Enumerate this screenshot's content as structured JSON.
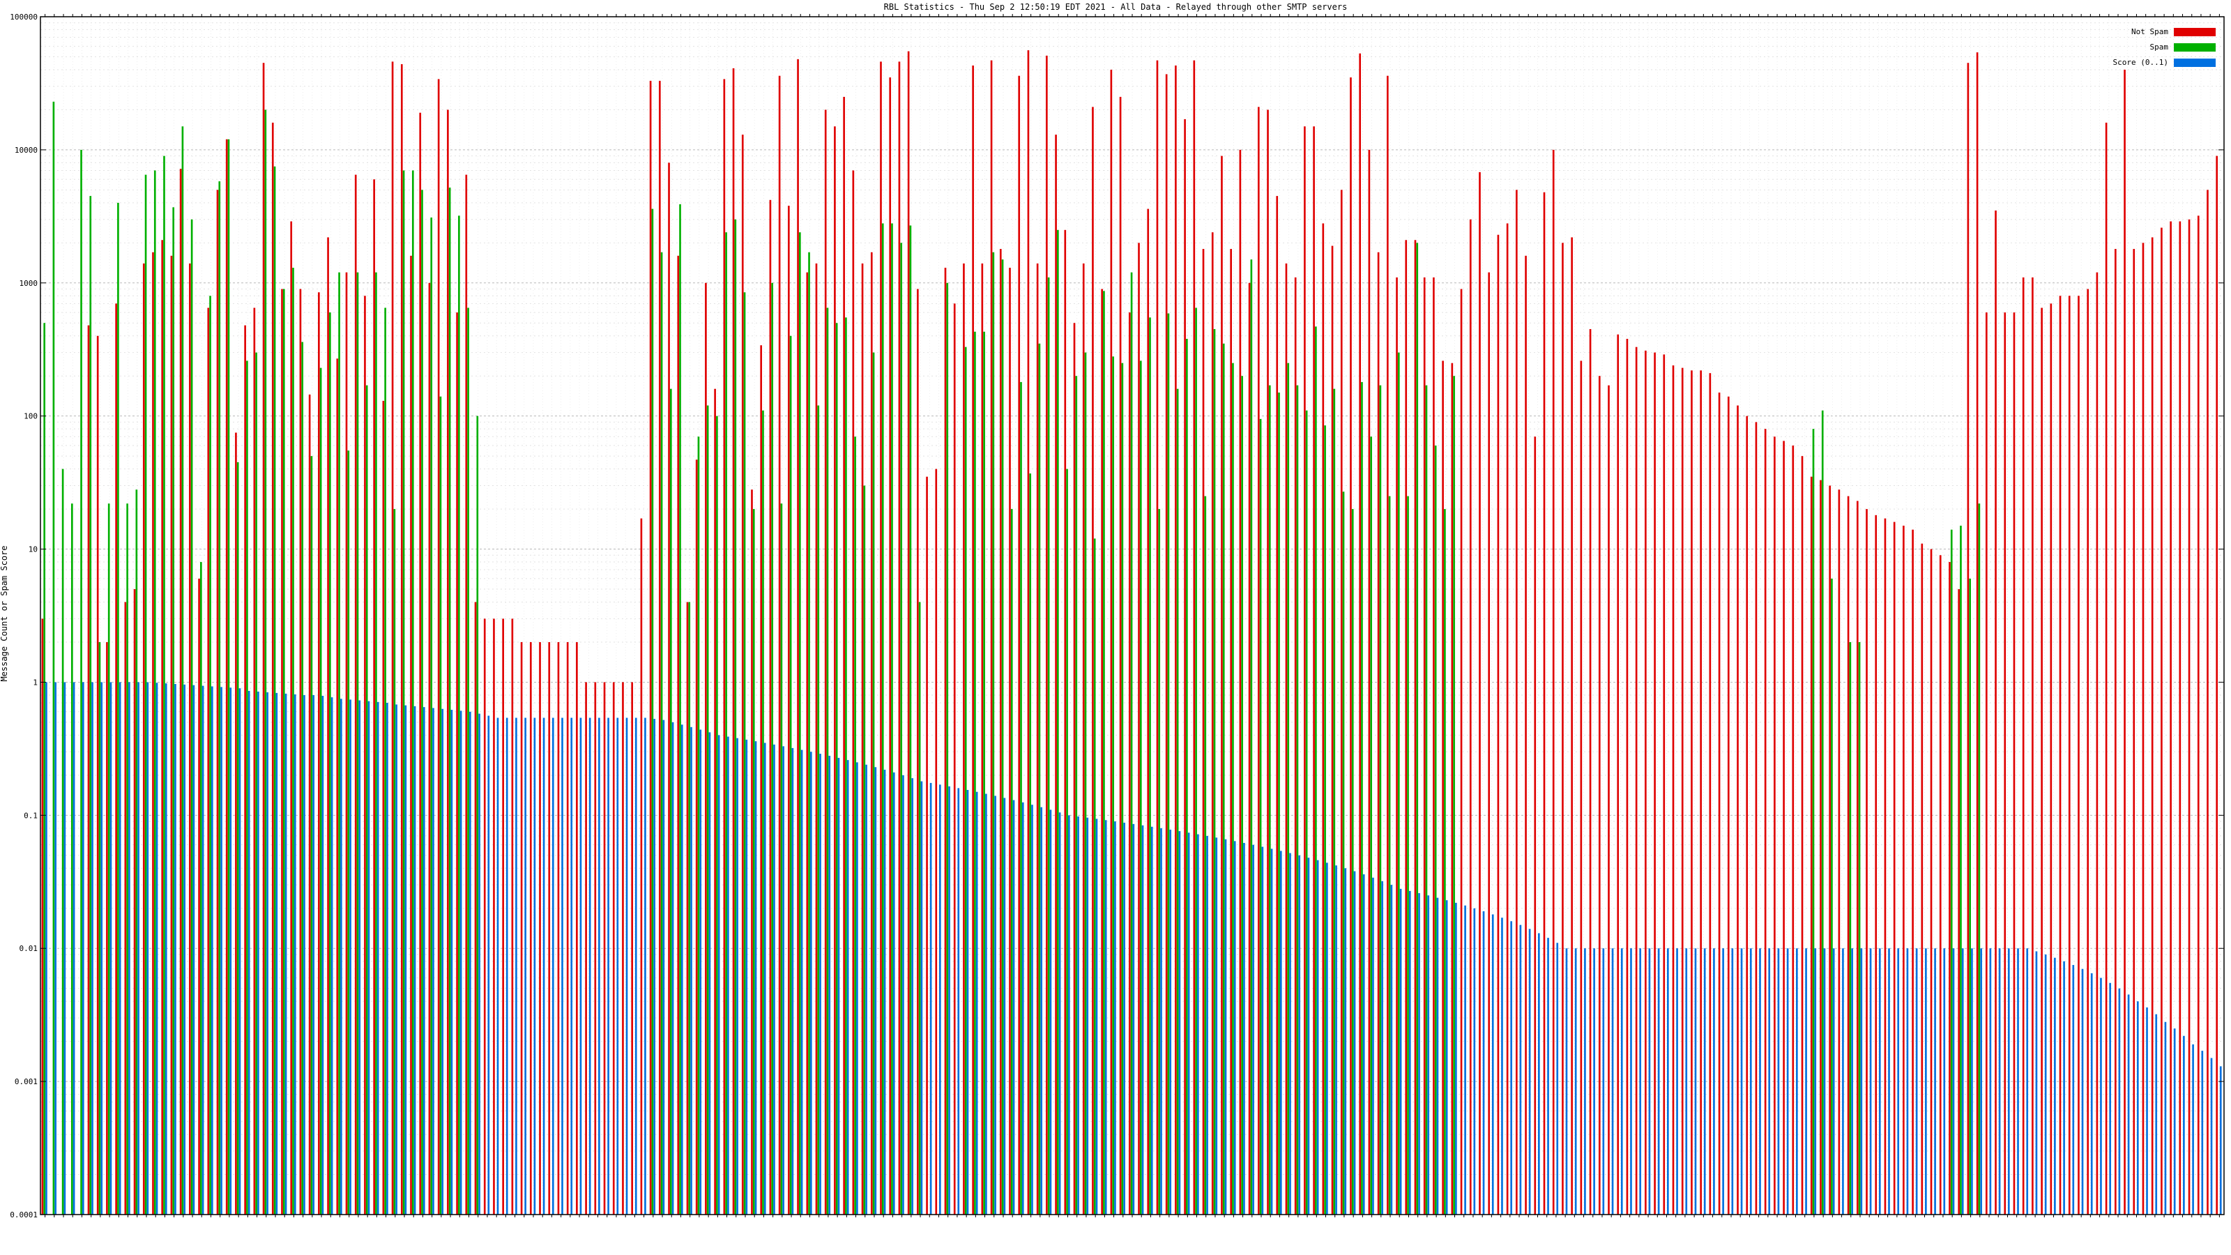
{
  "chart_data": {
    "type": "bar",
    "title": "RBL Statistics - Thu Sep  2 12:50:19 EDT 2021 - All Data - Relayed through other SMTP servers",
    "ylabel": "Message Count or Spam Score",
    "xlabel": "",
    "yscale": "log",
    "ylim": [
      0.0001,
      100000
    ],
    "y_ticks": [
      "0.0001",
      "0.001",
      "0.01",
      "0.1",
      "1",
      "10",
      "100",
      "1000",
      "10000",
      "100000"
    ],
    "grid": true,
    "legend_position": "top-right",
    "colors": {
      "not_spam": "#e00000",
      "spam": "#00b000",
      "score": "#0070e0"
    },
    "series": [
      {
        "name": "Not Spam",
        "color": "#e00000",
        "values": [
          3,
          0,
          0,
          0,
          0,
          480,
          400,
          2,
          700,
          4,
          5,
          1400,
          1700,
          2100,
          1600,
          7200,
          1400,
          6,
          650,
          5000,
          12000,
          75,
          480,
          650,
          45000,
          16000,
          900,
          2900,
          900,
          145,
          850,
          2200,
          270,
          1200,
          6500,
          800,
          6000,
          130,
          46000,
          44000,
          1600,
          19000,
          1000,
          34000,
          20000,
          600,
          6500,
          4,
          3,
          3,
          3,
          3,
          2,
          2,
          2,
          2,
          2,
          2,
          2,
          1,
          1,
          1,
          1,
          1,
          1,
          17,
          33000,
          33000,
          8000,
          1600,
          4,
          47,
          1000,
          160,
          34000,
          41000,
          13000,
          28,
          340,
          4200,
          36000,
          3800,
          48000,
          1200,
          1400,
          20000,
          15000,
          25000,
          7000,
          1400,
          1700,
          46000,
          35000,
          46000,
          55000,
          900,
          35,
          40,
          1300,
          700,
          1400,
          43000,
          1400,
          47000,
          1800,
          1300,
          36000,
          56000,
          1400,
          51000,
          13000,
          2500,
          500,
          1400,
          21000,
          900,
          40000,
          25000,
          600,
          2000,
          3600,
          47000,
          37000,
          43000,
          17000,
          47000,
          1800,
          2400,
          9000,
          1800,
          10000,
          1000,
          21000,
          20000,
          4500,
          1400,
          1100,
          15000,
          15000,
          2800,
          1900,
          5000,
          35000,
          53000,
          10000,
          1700,
          36000,
          1100,
          2100,
          2100,
          1100,
          1100,
          260,
          250,
          900,
          3000,
          6800,
          1200,
          2300,
          2800,
          5000,
          1600,
          70,
          4800,
          10000,
          2000,
          2200,
          260,
          450,
          200,
          170,
          410,
          380,
          330,
          310,
          300,
          290,
          240,
          230,
          220,
          220,
          210,
          150,
          140,
          120,
          100,
          90,
          80,
          70,
          65,
          60,
          50,
          35,
          33,
          30,
          28,
          25,
          23,
          20,
          18,
          17,
          16,
          15,
          14,
          11,
          10,
          9,
          8,
          5,
          45000,
          54000,
          600,
          3500,
          600,
          600,
          1100,
          1100,
          650,
          700,
          800,
          800,
          800,
          900,
          1200,
          16000,
          1800,
          40000,
          1800,
          2000,
          2200,
          2600,
          2900,
          2900,
          3000,
          3200,
          5000,
          9000
        ]
      },
      {
        "name": "Spam",
        "color": "#00b000",
        "values": [
          500,
          23000,
          40,
          22,
          10000,
          4500,
          2,
          22,
          4000,
          22,
          28,
          6500,
          7000,
          9000,
          3700,
          15000,
          3000,
          8,
          800,
          5800,
          12000,
          45,
          260,
          300,
          20000,
          7500,
          900,
          1300,
          360,
          50,
          230,
          600,
          1200,
          55,
          1200,
          170,
          1200,
          650,
          20,
          7000,
          7000,
          5000,
          3100,
          140,
          5200,
          3200,
          650,
          100,
          0,
          0,
          0,
          0,
          0,
          0,
          0,
          0,
          0,
          0,
          0,
          0,
          0,
          0,
          0,
          0,
          0,
          0,
          3600,
          1700,
          160,
          3900,
          4,
          70,
          120,
          100,
          2400,
          3000,
          850,
          20,
          110,
          1000,
          22,
          400,
          2400,
          1700,
          120,
          650,
          500,
          550,
          70,
          30,
          300,
          2800,
          2800,
          2000,
          2700,
          4,
          0,
          0,
          1000,
          0,
          330,
          430,
          430,
          1700,
          1500,
          20,
          180,
          37,
          350,
          1100,
          2500,
          40,
          200,
          300,
          12,
          870,
          280,
          250,
          1200,
          260,
          550,
          20,
          590,
          160,
          380,
          650,
          25,
          450,
          350,
          250,
          200,
          1500,
          95,
          170,
          150,
          250,
          170,
          110,
          470,
          85,
          160,
          27,
          20,
          180,
          70,
          170,
          25,
          300,
          25,
          2000,
          170,
          60,
          20,
          200,
          0,
          0,
          0,
          0,
          0,
          0,
          0,
          0,
          0,
          0,
          0,
          0,
          0,
          0,
          0,
          0,
          0,
          0,
          0,
          0,
          0,
          0,
          0,
          0,
          0,
          0,
          0,
          0,
          0,
          0,
          0,
          0,
          0,
          0,
          0,
          0,
          0,
          0,
          80,
          110,
          6,
          0,
          2,
          2,
          0,
          0,
          0,
          0,
          0,
          0,
          0,
          0,
          0,
          14,
          15,
          6,
          22,
          0,
          0,
          0,
          0,
          0,
          0,
          0,
          0,
          0
        ]
      },
      {
        "name": "Score (0..1)",
        "color": "#0070e0",
        "values": [
          1,
          1,
          1,
          1,
          1,
          1,
          1,
          1,
          1,
          1,
          1,
          1,
          1,
          1,
          1,
          1,
          1,
          1,
          1,
          1,
          1,
          1,
          1,
          1,
          1,
          1,
          1,
          1,
          1,
          1,
          1,
          1,
          1,
          1,
          1,
          1,
          1,
          1,
          1,
          1,
          1,
          1,
          1,
          1,
          1,
          1,
          1,
          1,
          1,
          1,
          1,
          1,
          1,
          1,
          1,
          1,
          1,
          1,
          1,
          1,
          1,
          1,
          1,
          1,
          1,
          1,
          1,
          1,
          1,
          1,
          1,
          1,
          1,
          1,
          1,
          1,
          1,
          1,
          1,
          1,
          1,
          1,
          1,
          1,
          1,
          1,
          1,
          1,
          1,
          1,
          1,
          1,
          1,
          1,
          1,
          1,
          1,
          1,
          1,
          1,
          1,
          1,
          1,
          1,
          1,
          1,
          1,
          1,
          1,
          1,
          1,
          1,
          1,
          1,
          1,
          1,
          1,
          1,
          1,
          1,
          1,
          1,
          1,
          1,
          1,
          1,
          1,
          1,
          1,
          1,
          1,
          1,
          1,
          1,
          1,
          1,
          1,
          1,
          1,
          1,
          1,
          1,
          1,
          1,
          1,
          1,
          1,
          1,
          1,
          1,
          1,
          1,
          1,
          1,
          1,
          1,
          1,
          1,
          1,
          1,
          1,
          1,
          1,
          1,
          1,
          1,
          1,
          1,
          1,
          1,
          1,
          1,
          1,
          1,
          1,
          1,
          1,
          1,
          1,
          1,
          1,
          1,
          1,
          1,
          1,
          1,
          1,
          1,
          1,
          1,
          1,
          1,
          1,
          1,
          1,
          1,
          1,
          1,
          1,
          1,
          1,
          1,
          1,
          1,
          1,
          1,
          1,
          1,
          1,
          1,
          1,
          1,
          1,
          1,
          1,
          1,
          1,
          1,
          1,
          1,
          1,
          1,
          1,
          1,
          1,
          1,
          1,
          1,
          1,
          1,
          1,
          1,
          1,
          1,
          1,
          1,
          1,
          1,
          1
        ]
      }
    ],
    "score_profile": [
      1,
      1,
      1,
      1,
      1,
      1,
      1,
      1,
      1,
      1,
      1,
      1,
      0.99,
      0.98,
      0.97,
      0.96,
      0.95,
      0.94,
      0.93,
      0.92,
      0.91,
      0.9,
      0.86,
      0.85,
      0.84,
      0.83,
      0.82,
      0.81,
      0.8,
      0.8,
      0.79,
      0.77,
      0.75,
      0.74,
      0.73,
      0.72,
      0.71,
      0.7,
      0.68,
      0.67,
      0.66,
      0.65,
      0.64,
      0.63,
      0.62,
      0.61,
      0.6,
      0.58,
      0.56,
      0.54,
      0.54,
      0.54,
      0.54,
      0.54,
      0.54,
      0.54,
      0.54,
      0.54,
      0.54,
      0.54,
      0.54,
      0.54,
      0.54,
      0.54,
      0.54,
      0.54,
      0.53,
      0.52,
      0.5,
      0.48,
      0.46,
      0.44,
      0.42,
      0.4,
      0.39,
      0.38,
      0.37,
      0.36,
      0.35,
      0.34,
      0.33,
      0.32,
      0.31,
      0.3,
      0.29,
      0.28,
      0.27,
      0.26,
      0.25,
      0.24,
      0.23,
      0.22,
      0.21,
      0.2,
      0.19,
      0.18,
      0.175,
      0.17,
      0.165,
      0.16,
      0.155,
      0.15,
      0.145,
      0.14,
      0.135,
      0.13,
      0.125,
      0.12,
      0.115,
      0.11,
      0.105,
      0.1,
      0.098,
      0.096,
      0.094,
      0.092,
      0.09,
      0.088,
      0.086,
      0.084,
      0.082,
      0.08,
      0.078,
      0.076,
      0.074,
      0.072,
      0.07,
      0.068,
      0.066,
      0.064,
      0.062,
      0.06,
      0.058,
      0.056,
      0.054,
      0.052,
      0.05,
      0.048,
      0.046,
      0.044,
      0.042,
      0.04,
      0.038,
      0.036,
      0.034,
      0.032,
      0.03,
      0.028,
      0.027,
      0.026,
      0.025,
      0.024,
      0.023,
      0.022,
      0.021,
      0.02,
      0.019,
      0.018,
      0.017,
      0.016,
      0.015,
      0.014,
      0.013,
      0.012,
      0.011,
      0.01,
      0.01,
      0.01,
      0.01,
      0.01,
      0.01,
      0.01,
      0.01,
      0.01,
      0.01,
      0.01,
      0.01,
      0.01,
      0.01,
      0.01,
      0.01,
      0.01,
      0.01,
      0.01,
      0.01,
      0.01,
      0.01,
      0.01,
      0.01,
      0.01,
      0.01,
      0.01,
      0.01,
      0.01,
      0.01,
      0.01,
      0.01,
      0.01,
      0.01,
      0.01,
      0.01,
      0.01,
      0.01,
      0.01,
      0.01,
      0.01,
      0.01,
      0.01,
      0.01,
      0.01,
      0.01,
      0.01,
      0.01,
      0.01,
      0.01,
      0.01,
      0.0095,
      0.009,
      0.0085,
      0.008,
      0.0075,
      0.007,
      0.0065,
      0.006,
      0.0055,
      0.005,
      0.0045,
      0.004,
      0.0036,
      0.0032,
      0.0028,
      0.0025,
      0.0022,
      0.0019,
      0.0017,
      0.0015,
      0.0013,
      0.0012,
      0.0011,
      0.001,
      0.0009,
      0.0008,
      0.0007,
      0.0006,
      0.0005,
      0.0004,
      0.0003,
      0.0003
    ]
  }
}
